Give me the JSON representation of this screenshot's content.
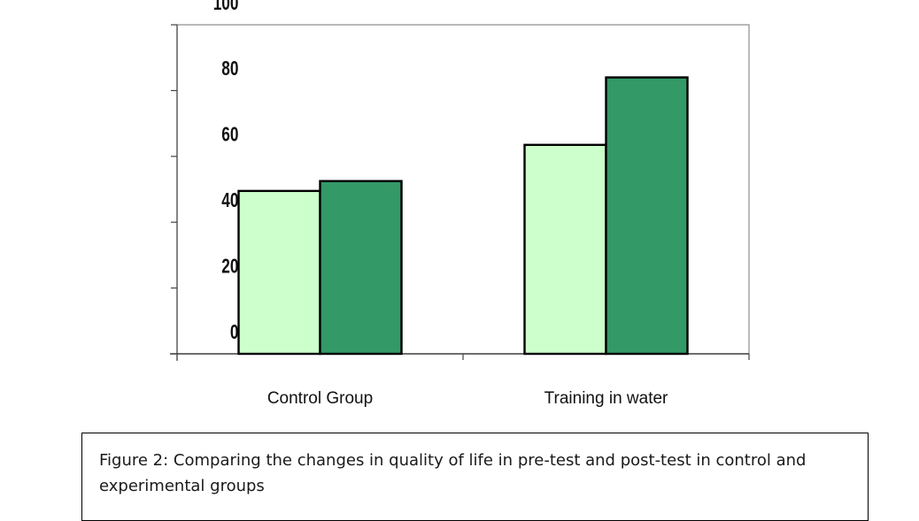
{
  "chart_data": {
    "type": "bar",
    "categories": [
      "Control Group",
      "Training in water"
    ],
    "series": [
      {
        "values": [
          49.5,
          63.5
        ],
        "color": "#ccffcc"
      },
      {
        "values": [
          52.5,
          84
        ],
        "color": "#339966"
      }
    ],
    "yticks": [
      "100",
      "80",
      "60",
      "40",
      "20",
      "0"
    ],
    "ylim": [
      0,
      100
    ],
    "grid": false,
    "legend": "none"
  },
  "caption": {
    "text": "Figure 2: Comparing the changes in quality of life in pre-test and post-test in control and experimental groups"
  }
}
